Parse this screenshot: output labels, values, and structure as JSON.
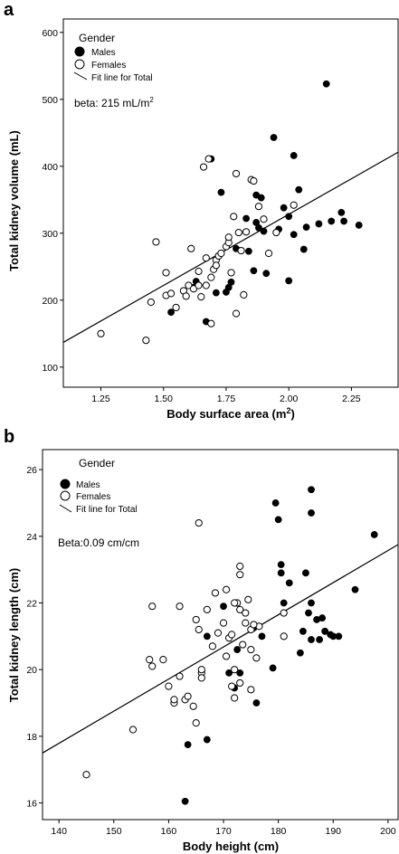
{
  "figure": {
    "panels": [
      "a",
      "b"
    ]
  },
  "chart_data": [
    {
      "type": "scatter",
      "panel": "a",
      "xlabel": "Body surface area (m",
      "xlabel_sup": "2",
      "xlabel_end": ")",
      "ylabel": "Total kidney volume (mL)",
      "xlim": [
        1.1,
        2.44
      ],
      "ylim": [
        70,
        620
      ],
      "xticks": [
        "1.25",
        "1.50",
        "1.75",
        "2.00",
        "2.25"
      ],
      "yticks": [
        "100",
        "200",
        "300",
        "400",
        "500",
        "600"
      ],
      "legend": {
        "title": "Gender",
        "males": "Males",
        "females": "Females",
        "fit": "Fit line for Total",
        "placement": "top-left"
      },
      "annotation": "beta: 215 mL/m",
      "annotation_sup": "2",
      "fit_line": [
        [
          1.1,
          137
        ],
        [
          2.44,
          421
        ]
      ],
      "colors": {
        "males": "#000000",
        "females": "#ffffff",
        "edge": "#000000"
      },
      "series": [
        {
          "name": "Males",
          "points": [
            [
              1.53,
              182
            ],
            [
              1.62,
              219
            ],
            [
              1.63,
              228
            ],
            [
              1.67,
              168
            ],
            [
              1.69,
              411
            ],
            [
              1.71,
              211
            ],
            [
              1.73,
              361
            ],
            [
              1.75,
              212
            ],
            [
              1.76,
              219
            ],
            [
              1.77,
              227
            ],
            [
              1.79,
              277
            ],
            [
              1.83,
              322
            ],
            [
              1.84,
              273
            ],
            [
              1.86,
              244
            ],
            [
              1.87,
              316
            ],
            [
              1.87,
              357
            ],
            [
              1.88,
              308
            ],
            [
              1.89,
              353
            ],
            [
              1.9,
              303
            ],
            [
              1.91,
              240
            ],
            [
              1.94,
              443
            ],
            [
              1.96,
              306
            ],
            [
              1.98,
              338
            ],
            [
              2.0,
              325
            ],
            [
              2.0,
              229
            ],
            [
              2.02,
              416
            ],
            [
              2.02,
              298
            ],
            [
              2.04,
              365
            ],
            [
              2.06,
              276
            ],
            [
              2.07,
              309
            ],
            [
              2.12,
              314
            ],
            [
              2.15,
              523
            ],
            [
              2.17,
              318
            ],
            [
              2.21,
              331
            ],
            [
              2.22,
              318
            ],
            [
              2.28,
              312
            ]
          ]
        },
        {
          "name": "Females",
          "points": [
            [
              1.25,
              150
            ],
            [
              1.43,
              140
            ],
            [
              1.45,
              197
            ],
            [
              1.47,
              287
            ],
            [
              1.51,
              241
            ],
            [
              1.51,
              207
            ],
            [
              1.53,
              210
            ],
            [
              1.55,
              189
            ],
            [
              1.58,
              214
            ],
            [
              1.59,
              206
            ],
            [
              1.6,
              222
            ],
            [
              1.61,
              277
            ],
            [
              1.62,
              217
            ],
            [
              1.64,
              243
            ],
            [
              1.65,
              205
            ],
            [
              1.66,
              399
            ],
            [
              1.67,
              222
            ],
            [
              1.68,
              411
            ],
            [
              1.69,
              234
            ],
            [
              1.7,
              246
            ],
            [
              1.71,
              260
            ],
            [
              1.72,
              266
            ],
            [
              1.73,
              270
            ],
            [
              1.75,
              280
            ],
            [
              1.76,
              286
            ],
            [
              1.78,
              325
            ],
            [
              1.79,
              389
            ],
            [
              1.8,
              301
            ],
            [
              1.81,
              274
            ],
            [
              1.83,
              302
            ],
            [
              1.85,
              380
            ],
            [
              1.86,
              378
            ],
            [
              1.88,
              340
            ],
            [
              1.9,
              321
            ],
            [
              1.92,
              270
            ],
            [
              1.77,
              241
            ],
            [
              1.79,
              180
            ],
            [
              1.69,
              165
            ],
            [
              1.82,
              208
            ],
            [
              1.67,
              263
            ],
            [
              1.76,
              294
            ],
            [
              1.71,
              252
            ],
            [
              2.02,
              342
            ],
            [
              1.95,
              301
            ],
            [
              1.64,
              222
            ]
          ]
        }
      ]
    },
    {
      "type": "scatter",
      "panel": "b",
      "xlabel": "Body height (cm)",
      "ylabel": "Total kidney length (cm)",
      "xlim": [
        137,
        202
      ],
      "ylim": [
        15.5,
        26.6
      ],
      "xticks": [
        "140",
        "150",
        "160",
        "170",
        "180",
        "190",
        "200"
      ],
      "yticks": [
        "16",
        "18",
        "20",
        "22",
        "24",
        "26"
      ],
      "legend": {
        "title": "Gender",
        "males": "Males",
        "females": "Females",
        "fit": "Fit line for Total",
        "placement": "top-left"
      },
      "annotation": "Beta:0.09 cm/cm",
      "fit_line": [
        [
          137,
          17.5
        ],
        [
          202,
          23.75
        ]
      ],
      "colors": {
        "males": "#000000",
        "females": "#ffffff",
        "edge": "#000000"
      },
      "series": [
        {
          "name": "Males",
          "points": [
            [
              163.0,
              16.05
            ],
            [
              163.5,
              17.75
            ],
            [
              167.0,
              17.9
            ],
            [
              167.0,
              21.0
            ],
            [
              170.0,
              21.9
            ],
            [
              171.0,
              19.9
            ],
            [
              172.0,
              19.45
            ],
            [
              172.5,
              20.6
            ],
            [
              173.0,
              19.9
            ],
            [
              175.0,
              21.2
            ],
            [
              175.5,
              21.25
            ],
            [
              176.0,
              19.0
            ],
            [
              177.0,
              21.0
            ],
            [
              179.0,
              20.05
            ],
            [
              179.5,
              25.0
            ],
            [
              180.0,
              24.5
            ],
            [
              180.5,
              23.15
            ],
            [
              180.5,
              22.9
            ],
            [
              181.0,
              22.0
            ],
            [
              182.0,
              22.6
            ],
            [
              184.0,
              20.5
            ],
            [
              184.5,
              21.15
            ],
            [
              185.0,
              22.9
            ],
            [
              185.5,
              21.7
            ],
            [
              186.0,
              22.0
            ],
            [
              186.0,
              24.7
            ],
            [
              186.0,
              25.4
            ],
            [
              186.0,
              20.9
            ],
            [
              187.0,
              21.5
            ],
            [
              187.5,
              20.9
            ],
            [
              188.0,
              21.55
            ],
            [
              188.5,
              21.15
            ],
            [
              189.5,
              21.05
            ],
            [
              190.0,
              21.0
            ],
            [
              191.0,
              21.0
            ],
            [
              194.0,
              22.4
            ],
            [
              197.5,
              24.05
            ]
          ]
        },
        {
          "name": "Females",
          "points": [
            [
              145.0,
              16.85
            ],
            [
              153.5,
              18.2
            ],
            [
              156.5,
              20.3
            ],
            [
              157.0,
              20.1
            ],
            [
              157.0,
              21.9
            ],
            [
              159.0,
              20.3
            ],
            [
              160.0,
              19.5
            ],
            [
              161.0,
              19.0
            ],
            [
              161.0,
              19.1
            ],
            [
              162.0,
              19.8
            ],
            [
              162.0,
              21.9
            ],
            [
              163.0,
              19.1
            ],
            [
              163.5,
              19.2
            ],
            [
              164.5,
              18.9
            ],
            [
              165.0,
              18.4
            ],
            [
              165.0,
              21.5
            ],
            [
              165.5,
              21.2
            ],
            [
              165.5,
              24.4
            ],
            [
              166.0,
              19.9
            ],
            [
              166.0,
              20.0
            ],
            [
              166.0,
              19.75
            ],
            [
              167.0,
              21.8
            ],
            [
              168.0,
              20.7
            ],
            [
              168.5,
              22.3
            ],
            [
              169.0,
              21.1
            ],
            [
              170.0,
              21.4
            ],
            [
              170.5,
              22.4
            ],
            [
              171.0,
              20.95
            ],
            [
              171.5,
              19.5
            ],
            [
              172.0,
              20.0
            ],
            [
              172.0,
              19.15
            ],
            [
              172.5,
              22.0
            ],
            [
              173.0,
              21.8
            ],
            [
              173.0,
              23.1
            ],
            [
              173.0,
              22.85
            ],
            [
              173.0,
              19.6
            ],
            [
              173.5,
              20.75
            ],
            [
              174.0,
              21.4
            ],
            [
              174.0,
              21.7
            ],
            [
              174.5,
              22.1
            ],
            [
              175.0,
              21.2
            ],
            [
              175.0,
              19.4
            ],
            [
              175.0,
              20.6
            ],
            [
              176.0,
              20.35
            ],
            [
              176.5,
              21.3
            ],
            [
              181.0,
              21.0
            ],
            [
              181.0,
              21.7
            ],
            [
              172.0,
              22.0
            ],
            [
              171.5,
              21.05
            ],
            [
              175.5,
              21.35
            ],
            [
              170.5,
              20.4
            ]
          ]
        }
      ]
    }
  ]
}
